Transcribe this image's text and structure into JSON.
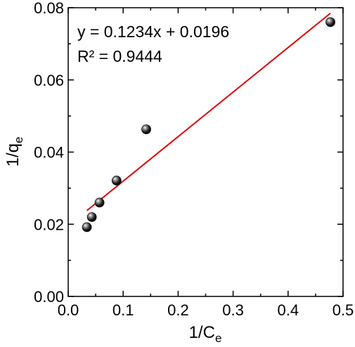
{
  "chart_data": {
    "type": "scatter",
    "xlabel": {
      "main": "1/C",
      "sub": "e"
    },
    "ylabel": {
      "main": "1/q",
      "sub": "e"
    },
    "xlim": [
      0.0,
      0.5
    ],
    "ylim": [
      0.0,
      0.08
    ],
    "x_ticks": [
      "0.0",
      "0.1",
      "0.2",
      "0.3",
      "0.4",
      "0.5"
    ],
    "y_ticks": [
      "0.00",
      "0.02",
      "0.04",
      "0.06",
      "0.08"
    ],
    "grid": false,
    "series": [
      {
        "points": [
          {
            "x": 0.034,
            "y": 0.0192
          },
          {
            "x": 0.043,
            "y": 0.022
          },
          {
            "x": 0.057,
            "y": 0.026
          },
          {
            "x": 0.088,
            "y": 0.0321
          },
          {
            "x": 0.142,
            "y": 0.0463
          },
          {
            "x": 0.477,
            "y": 0.076
          }
        ],
        "marker_color": "#111111"
      }
    ],
    "fit_line": {
      "slope": 0.1234,
      "intercept": 0.0196,
      "x_range": [
        0.034,
        0.477
      ],
      "color": "#e00000"
    },
    "annotations": {
      "equation": "y = 0.1234x + 0.0196",
      "r_squared": "R² = 0.9444"
    }
  }
}
